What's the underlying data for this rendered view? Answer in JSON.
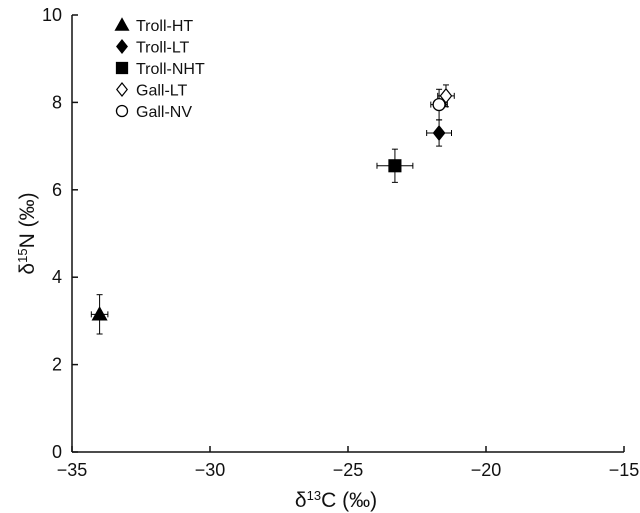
{
  "chart_data": {
    "type": "scatter",
    "title": "",
    "xlabel": {
      "prefix": "δ",
      "sup": "13",
      "main": "C (‰)"
    },
    "ylabel": {
      "prefix": "δ",
      "sup": "15",
      "main": "N (‰)"
    },
    "xlim": [
      -35,
      -15
    ],
    "ylim": [
      0,
      10
    ],
    "xticks": [
      -35,
      -30,
      -25,
      -20,
      -15
    ],
    "yticks": [
      0,
      2,
      4,
      6,
      8,
      10
    ],
    "xtick_labels": [
      "−35",
      "−30",
      "−25",
      "−20",
      "−15"
    ],
    "ytick_labels": [
      "0",
      "2",
      "4",
      "6",
      "8",
      "10"
    ],
    "grid": false,
    "legend_position": "top-left",
    "series": [
      {
        "name": "Troll-HT",
        "marker": "triangle-filled",
        "points": [
          {
            "x": -34.0,
            "y": 3.15,
            "xerr": 0.3,
            "yerr": 0.45
          }
        ]
      },
      {
        "name": "Troll-LT",
        "marker": "diamond-filled",
        "points": [
          {
            "x": -21.7,
            "y": 7.3,
            "xerr": 0.45,
            "yerr": 0.3
          }
        ]
      },
      {
        "name": "Troll-NHT",
        "marker": "square-filled",
        "points": [
          {
            "x": -23.3,
            "y": 6.55,
            "xerr": 0.65,
            "yerr": 0.38
          }
        ]
      },
      {
        "name": "Gall-LT",
        "marker": "diamond-open",
        "points": [
          {
            "x": -21.45,
            "y": 8.15,
            "xerr": 0.3,
            "yerr": 0.25
          }
        ]
      },
      {
        "name": "Gall-NV",
        "marker": "circle-open",
        "points": [
          {
            "x": -21.7,
            "y": 7.95,
            "xerr": 0.3,
            "yerr": 0.35
          }
        ]
      }
    ]
  }
}
